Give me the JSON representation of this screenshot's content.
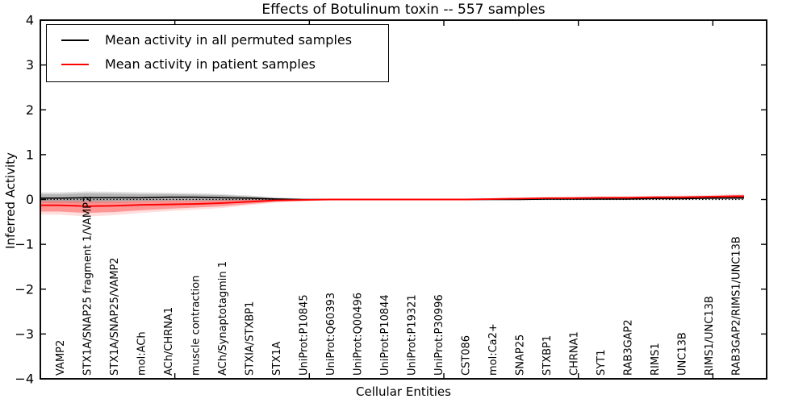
{
  "figure": {
    "title": "Effects of Botulinum toxin -- 557 samples",
    "sample_count": "557"
  },
  "chart_data": {
    "type": "line",
    "title": "Effects of Botulinum toxin -- 557 samples",
    "xlabel": "Cellular Entities",
    "ylabel": "Inferred Activity",
    "ylim": [
      -4,
      4
    ],
    "yticks": [
      "4",
      "3",
      "2",
      "1",
      "0",
      "−1",
      "−2",
      "−3",
      "−4"
    ],
    "grid": false,
    "legend_position": "upper left",
    "baseline": {
      "y": 0,
      "style": "dotted",
      "color": "#000000"
    },
    "categories": [
      "VAMP2",
      "STX1A/SNAP25 fragment 1/VAMP2",
      "STX1A/SNAP25/VAMP2",
      "mol:ACh",
      "ACh/CHRNA1",
      "muscle contraction",
      "ACh/Synaptotagmin 1",
      "STXIA/STXBP1",
      "STX1A",
      "UniProt:P10845",
      "UniProt:Q60393",
      "UniProt:Q00496",
      "UniProt:P10844",
      "UniProt:P19321",
      "UniProt:P30996",
      "CST086",
      "mol:Ca2+",
      "SNAP25",
      "STXBP1",
      "CHRNA1",
      "SYT1",
      "RAB3GAP2",
      "RIMS1",
      "UNC13B",
      "RIMS1/UNC13B",
      "RAB3GAP2/RIMS1/UNC13B"
    ],
    "series": [
      {
        "name": "permuted",
        "label": "Mean activity in all permuted samples",
        "color": "#000000",
        "band_color": "#000000",
        "mean": [
          0.03,
          0.04,
          0.04,
          0.04,
          0.05,
          0.05,
          0.04,
          0.03,
          0.01,
          0.0,
          0.0,
          0.0,
          0.0,
          0.0,
          0.0,
          0.0,
          0.0,
          0.0,
          0.01,
          0.01,
          0.01,
          0.01,
          0.02,
          0.02,
          0.03,
          0.035
        ],
        "band_inner_lo": [
          -0.04,
          -0.05,
          -0.04,
          -0.03,
          -0.02,
          -0.02,
          -0.02,
          -0.01,
          -0.01,
          -0.01,
          -0.01,
          -0.01,
          -0.01,
          -0.01,
          -0.01,
          -0.01,
          -0.01,
          0.0,
          0.0,
          0.0,
          0.0,
          0.0,
          0.0,
          0.01,
          0.01,
          0.01
        ],
        "band_inner_hi": [
          0.12,
          0.14,
          0.13,
          0.12,
          0.12,
          0.11,
          0.1,
          0.07,
          0.03,
          0.01,
          0.01,
          0.01,
          0.01,
          0.01,
          0.01,
          0.01,
          0.01,
          0.02,
          0.02,
          0.02,
          0.02,
          0.03,
          0.04,
          0.05,
          0.06,
          0.07
        ],
        "band_outer_lo": [
          -0.08,
          -0.09,
          -0.08,
          -0.06,
          -0.05,
          -0.05,
          -0.04,
          -0.03,
          -0.02,
          -0.01,
          -0.01,
          -0.01,
          -0.01,
          -0.01,
          -0.01,
          -0.01,
          -0.01,
          -0.01,
          0.0,
          0.0,
          0.0,
          0.0,
          0.0,
          0.0,
          0.0,
          0.0
        ],
        "band_outer_hi": [
          0.16,
          0.18,
          0.17,
          0.16,
          0.15,
          0.14,
          0.12,
          0.09,
          0.05,
          0.02,
          0.01,
          0.01,
          0.01,
          0.01,
          0.01,
          0.01,
          0.02,
          0.02,
          0.03,
          0.03,
          0.03,
          0.04,
          0.05,
          0.06,
          0.08,
          0.09
        ]
      },
      {
        "name": "patient",
        "label": "Mean activity in patient samples",
        "color": "#ff0000",
        "band_color": "#ff0000",
        "mean": [
          -0.13,
          -0.15,
          -0.14,
          -0.12,
          -0.11,
          -0.1,
          -0.08,
          -0.05,
          -0.02,
          -0.01,
          0.0,
          0.0,
          0.0,
          0.0,
          0.0,
          0.0,
          0.01,
          0.02,
          0.03,
          0.03,
          0.04,
          0.04,
          0.05,
          0.05,
          0.06,
          0.07
        ],
        "band_inner_lo": [
          -0.27,
          -0.3,
          -0.28,
          -0.24,
          -0.21,
          -0.18,
          -0.15,
          -0.1,
          -0.05,
          -0.03,
          -0.01,
          -0.01,
          -0.01,
          -0.01,
          -0.01,
          -0.01,
          0.0,
          0.01,
          0.01,
          0.02,
          0.02,
          0.03,
          0.03,
          0.04,
          0.04,
          0.04
        ],
        "band_inner_hi": [
          -0.04,
          -0.05,
          -0.05,
          -0.04,
          -0.03,
          -0.03,
          -0.02,
          -0.01,
          0.0,
          0.0,
          0.01,
          0.01,
          0.01,
          0.01,
          0.01,
          0.01,
          0.02,
          0.03,
          0.04,
          0.05,
          0.05,
          0.06,
          0.06,
          0.07,
          0.08,
          0.1
        ],
        "band_outer_lo": [
          -0.34,
          -0.38,
          -0.35,
          -0.3,
          -0.26,
          -0.23,
          -0.19,
          -0.13,
          -0.07,
          -0.04,
          -0.02,
          -0.02,
          -0.01,
          -0.01,
          -0.01,
          -0.02,
          -0.01,
          0.0,
          0.0,
          0.01,
          0.01,
          0.02,
          0.02,
          0.03,
          0.03,
          0.02
        ],
        "band_outer_hi": [
          0.0,
          -0.01,
          -0.01,
          0.0,
          0.0,
          0.0,
          0.0,
          0.01,
          0.01,
          0.01,
          0.01,
          0.01,
          0.01,
          0.01,
          0.02,
          0.02,
          0.03,
          0.04,
          0.05,
          0.06,
          0.07,
          0.07,
          0.08,
          0.09,
          0.1,
          0.12
        ]
      }
    ]
  }
}
